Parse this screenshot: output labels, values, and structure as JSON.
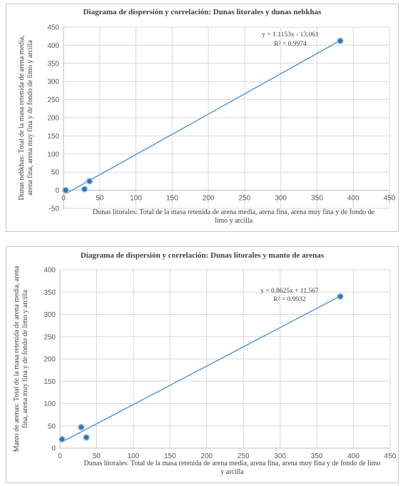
{
  "chart_data": [
    {
      "type": "scatter",
      "title": "Diagrama de dispersión  y correlación: Dunas litorales y dunas nebkhas",
      "xlabel_lines": [
        "Dunas litorales: Total de la masa retenida de arena media, arena fina, arena muy fina y de fondo de",
        "limo y arcilla"
      ],
      "ylabel_lines": [
        "Dunas nebkhas: Total de la masa retenida de arena media,",
        "arena fina, arena muy fina y de fondo de limo y arcilla"
      ],
      "xlim": [
        0,
        450
      ],
      "ylim": [
        -50,
        450
      ],
      "xticks": [
        0,
        50,
        100,
        150,
        200,
        250,
        300,
        350,
        400,
        450
      ],
      "yticks": [
        -50,
        0,
        50,
        100,
        150,
        200,
        250,
        300,
        350,
        400,
        450
      ],
      "series": [
        {
          "x": [
            3,
            29,
            36,
            382
          ],
          "y": [
            0,
            3,
            25,
            412
          ]
        }
      ],
      "trendline": {
        "slope": 1.1153,
        "intercept": -13.061
      },
      "equation": "y = 1.1153x - 13.061",
      "r2": "R² = 0.9974",
      "grid": true,
      "legend": "none",
      "colors": {
        "marker": "#2e75b6",
        "line": "#5b9bd5"
      }
    },
    {
      "type": "scatter",
      "title": "Diagrama de dispersión  y correlación: Dunas litorales y manto de arenas",
      "xlabel_lines": [
        "Dunas litorales: Total de la masa retenida de arena media, arena fina, arena muy fina y de fondo de limo",
        "y arcilla"
      ],
      "ylabel_lines": [
        "Manto de arenas: Total de la masa retenida de arena media, arena",
        "fina, arena muy fina y de fondo de limo y arcilla"
      ],
      "xlim": [
        0,
        450
      ],
      "ylim": [
        0,
        400
      ],
      "xticks": [
        0,
        50,
        100,
        150,
        200,
        250,
        300,
        350,
        400,
        450
      ],
      "yticks": [
        0,
        50,
        100,
        150,
        200,
        250,
        300,
        350,
        400
      ],
      "series": [
        {
          "x": [
            3,
            29,
            36,
            382
          ],
          "y": [
            20,
            47,
            24,
            340
          ]
        }
      ],
      "trendline": {
        "slope": 0.8625,
        "intercept": 11.567
      },
      "equation": "y = 0.8625x + 11.567",
      "r2": "R² = 0.9932",
      "grid": true,
      "legend": "none",
      "colors": {
        "marker": "#2e75b6",
        "line": "#5b9bd5"
      }
    }
  ]
}
